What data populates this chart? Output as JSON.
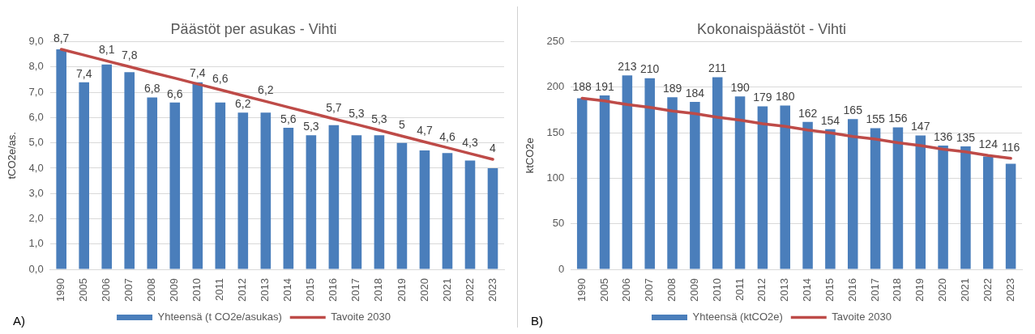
{
  "chart_data": [
    {
      "type": "bar",
      "title": "Päästöt per asukas - Vihti",
      "ylabel": "tCO2e/as.",
      "categories": [
        "1990",
        "2005",
        "2006",
        "2007",
        "2008",
        "2009",
        "2010",
        "2011",
        "2012",
        "2013",
        "2014",
        "2015",
        "2016",
        "2017",
        "2018",
        "2019",
        "2020",
        "2021",
        "2022",
        "2023"
      ],
      "series": [
        {
          "name": "Yhteensä (t CO2e/asukas)",
          "color": "#4a7ebb",
          "values": [
            8.7,
            7.4,
            8.1,
            7.8,
            6.8,
            6.6,
            7.4,
            6.6,
            6.2,
            6.2,
            5.6,
            5.3,
            5.7,
            5.3,
            5.3,
            5,
            4.7,
            4.6,
            4.3,
            4
          ],
          "value_labels": [
            "8,7",
            "7,4",
            "8,1",
            "7,8",
            "6,8",
            "6,6",
            "7,4",
            "6,6",
            "6,2",
            "6,2",
            "5,6",
            "5,3",
            "5,7",
            "5,3",
            "5,3",
            "5",
            "4,7",
            "4,6",
            "4,3",
            "4"
          ]
        },
        {
          "name": "Tavoite 2030",
          "type": "line",
          "color": "#be4b48",
          "values": [
            8.7,
            8.47,
            8.24,
            8.01,
            7.78,
            7.56,
            7.33,
            7.1,
            6.87,
            6.64,
            6.41,
            6.18,
            5.95,
            5.73,
            5.5,
            5.27,
            5.04,
            4.81,
            4.58,
            4.35
          ]
        }
      ],
      "ylim": [
        0,
        9
      ],
      "yticks": [
        {
          "value": 0,
          "label": "0,0"
        },
        {
          "value": 1,
          "label": "1,0"
        },
        {
          "value": 2,
          "label": "2,0"
        },
        {
          "value": 3,
          "label": "3,0"
        },
        {
          "value": 4,
          "label": "4,0"
        },
        {
          "value": 5,
          "label": "5,0"
        },
        {
          "value": 6,
          "label": "6,0"
        },
        {
          "value": 7,
          "label": "7,0"
        },
        {
          "value": 8,
          "label": "8,0"
        },
        {
          "value": 9,
          "label": "9,0"
        }
      ],
      "grid": "y",
      "legend": "bottom",
      "annotations": [
        "A)"
      ]
    },
    {
      "type": "bar",
      "title": "Kokonaispäästöt - Vihti",
      "ylabel": "ktCO2e",
      "categories": [
        "1990",
        "2005",
        "2006",
        "2007",
        "2008",
        "2009",
        "2010",
        "2011",
        "2012",
        "2013",
        "2014",
        "2015",
        "2016",
        "2017",
        "2018",
        "2019",
        "2020",
        "2021",
        "2022",
        "2023"
      ],
      "series": [
        {
          "name": "Yhteensä (ktCO2e)",
          "color": "#4a7ebb",
          "values": [
            188,
            191,
            213,
            210,
            189,
            184,
            211,
            190,
            179,
            180,
            162,
            154,
            165,
            155,
            156,
            147,
            136,
            135,
            124,
            116
          ],
          "value_labels": [
            "188",
            "191",
            "213",
            "210",
            "189",
            "184",
            "211",
            "190",
            "179",
            "180",
            "162",
            "154",
            "165",
            "155",
            "156",
            "147",
            "136",
            "135",
            "124",
            "116"
          ]
        },
        {
          "name": "Tavoite 2030",
          "type": "line",
          "color": "#be4b48",
          "values": [
            188,
            185,
            181,
            178,
            174,
            171,
            167,
            164,
            160,
            157,
            153,
            150,
            146,
            143,
            139,
            136,
            132,
            129,
            125,
            122
          ]
        }
      ],
      "ylim": [
        0,
        250
      ],
      "yticks": [
        0,
        50,
        100,
        150,
        200,
        250
      ],
      "grid": "y",
      "legend": "bottom",
      "annotations": [
        "B)"
      ]
    }
  ]
}
